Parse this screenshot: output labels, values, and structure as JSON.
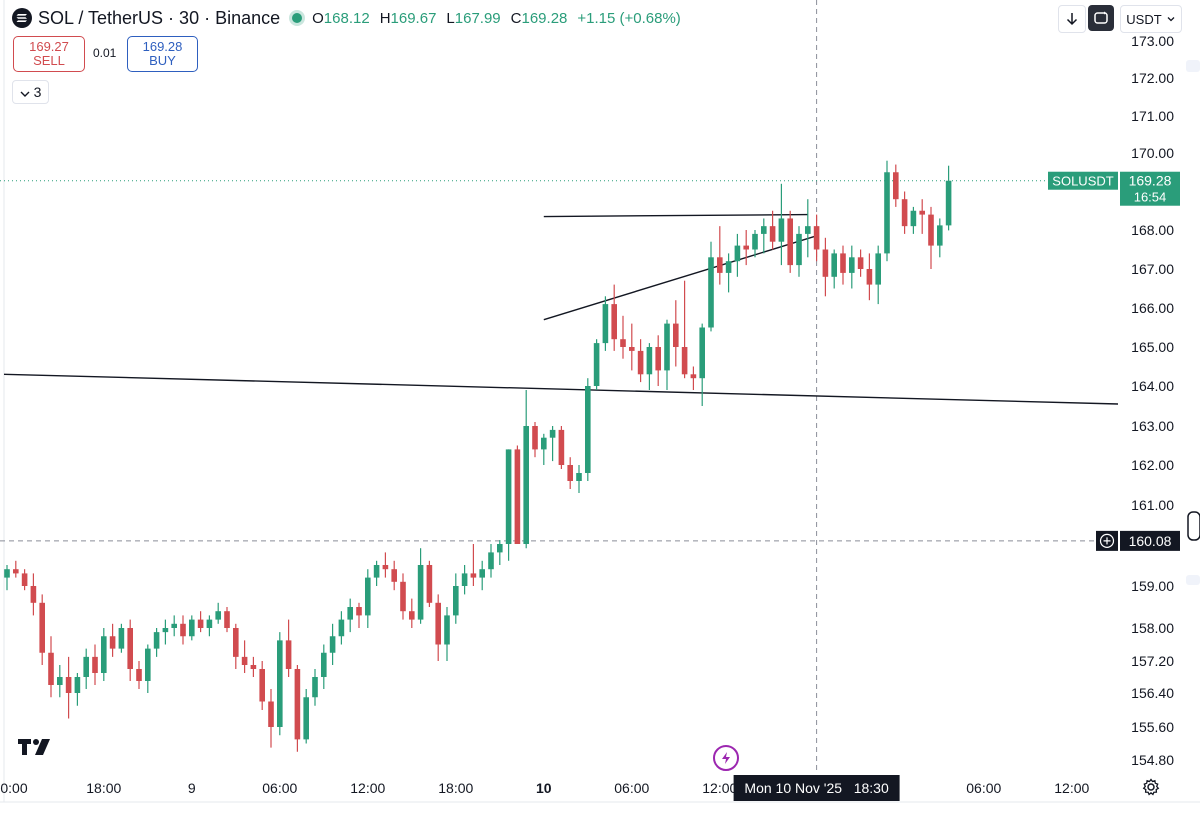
{
  "header": {
    "symbol": "SOL / TetherUS · 30 · Binance",
    "open_label": "O",
    "open_value": "168.12",
    "high_label": "H",
    "high_value": "169.67",
    "low_label": "L",
    "low_value": "167.99",
    "close_label": "C",
    "close_value": "169.28",
    "change": "+1.15 (+0.68%)"
  },
  "trade": {
    "sell_price": "169.27",
    "sell_label": "SELL",
    "spread": "0.01",
    "buy_price": "169.28",
    "buy_label": "BUY"
  },
  "indicator_count": "3",
  "toolbar": {
    "currency": "USDT"
  },
  "colors": {
    "up": "#2a9d7a",
    "down": "#d14b4f",
    "price_tag": "#2a9d7a",
    "crosshair_tag": "#131722"
  },
  "chart_data": {
    "type": "candlestick",
    "title": "SOL / TetherUS · 30 · Binance",
    "y_ticks": [
      173.0,
      172.0,
      171.0,
      170.0,
      168.0,
      167.0,
      166.0,
      165.0,
      164.0,
      163.0,
      162.0,
      161.0,
      159.0,
      158.0,
      157.2,
      156.4,
      155.6,
      154.8
    ],
    "x_ticks": [
      "0:00",
      "18:00",
      "9",
      "06:00",
      "12:00",
      "18:00",
      "10",
      "06:00",
      "12:00",
      "06:00",
      "12:00"
    ],
    "x_tick_indices": [
      0,
      11,
      21,
      31,
      41,
      51,
      61,
      71,
      81,
      111,
      121
    ],
    "bold_x_ticks": [
      "10"
    ],
    "price_label": {
      "symbol": "SOLUSDT",
      "price": "169.28",
      "countdown": "16:54"
    },
    "crosshair": {
      "price": "160.08",
      "time": "Mon 10 Nov '25   18:30",
      "index": 92
    },
    "trendlines": [
      {
        "from": [
          0,
          164.3
        ],
        "to": [
          127,
          163.55
        ]
      },
      {
        "from": [
          61,
          168.35
        ],
        "to": [
          91,
          168.4
        ]
      },
      {
        "from": [
          61,
          165.7
        ],
        "to": [
          92,
          167.85
        ]
      }
    ],
    "ohlc": [
      [
        159.2,
        159.5,
        158.9,
        159.4
      ],
      [
        159.4,
        159.6,
        159.2,
        159.3
      ],
      [
        159.3,
        159.4,
        158.9,
        159.0
      ],
      [
        159.0,
        159.3,
        158.3,
        158.6
      ],
      [
        158.6,
        158.8,
        157.1,
        157.4
      ],
      [
        157.4,
        157.8,
        156.3,
        156.6
      ],
      [
        156.6,
        157.1,
        156.3,
        156.8
      ],
      [
        156.8,
        157.3,
        155.8,
        156.4
      ],
      [
        156.4,
        156.9,
        156.1,
        156.8
      ],
      [
        156.8,
        157.5,
        156.5,
        157.3
      ],
      [
        157.3,
        157.6,
        156.6,
        156.9
      ],
      [
        156.9,
        158.0,
        156.7,
        157.8
      ],
      [
        157.8,
        158.1,
        157.3,
        157.5
      ],
      [
        157.5,
        158.1,
        157.4,
        158.0
      ],
      [
        158.0,
        158.2,
        156.7,
        157.0
      ],
      [
        157.0,
        157.2,
        156.5,
        156.7
      ],
      [
        156.7,
        157.6,
        156.4,
        157.5
      ],
      [
        157.5,
        158.0,
        157.3,
        157.9
      ],
      [
        157.9,
        158.2,
        157.6,
        158.0
      ],
      [
        158.0,
        158.3,
        157.8,
        158.1
      ],
      [
        158.1,
        158.3,
        157.6,
        157.8
      ],
      [
        157.8,
        158.3,
        157.7,
        158.2
      ],
      [
        158.2,
        158.4,
        157.9,
        158.0
      ],
      [
        158.0,
        158.3,
        157.8,
        158.2
      ],
      [
        158.2,
        158.6,
        158.1,
        158.4
      ],
      [
        158.4,
        158.5,
        157.9,
        158.0
      ],
      [
        158.0,
        158.1,
        157.0,
        157.3
      ],
      [
        157.3,
        157.7,
        156.9,
        157.1
      ],
      [
        157.1,
        157.3,
        156.8,
        157.0
      ],
      [
        157.0,
        157.2,
        156.0,
        156.2
      ],
      [
        156.2,
        156.5,
        155.1,
        155.6
      ],
      [
        155.6,
        157.9,
        155.4,
        157.7
      ],
      [
        157.7,
        158.2,
        156.8,
        157.0
      ],
      [
        157.0,
        157.1,
        155.0,
        155.3
      ],
      [
        155.3,
        156.5,
        155.2,
        156.3
      ],
      [
        156.3,
        157.0,
        156.1,
        156.8
      ],
      [
        156.8,
        157.6,
        156.5,
        157.4
      ],
      [
        157.4,
        158.1,
        157.1,
        157.8
      ],
      [
        157.8,
        158.4,
        157.6,
        158.2
      ],
      [
        158.2,
        158.7,
        157.9,
        158.5
      ],
      [
        158.5,
        158.6,
        158.0,
        158.3
      ],
      [
        158.3,
        159.4,
        158.0,
        159.2
      ],
      [
        159.2,
        159.6,
        159.0,
        159.5
      ],
      [
        159.5,
        159.8,
        159.2,
        159.4
      ],
      [
        159.4,
        159.6,
        158.9,
        159.1
      ],
      [
        159.1,
        159.3,
        158.2,
        158.4
      ],
      [
        158.4,
        158.7,
        158.0,
        158.2
      ],
      [
        158.2,
        159.9,
        158.1,
        159.5
      ],
      [
        159.5,
        159.6,
        158.5,
        158.6
      ],
      [
        158.6,
        158.8,
        157.2,
        157.6
      ],
      [
        157.6,
        158.5,
        157.2,
        158.3
      ],
      [
        158.3,
        159.3,
        158.1,
        159.0
      ],
      [
        159.0,
        159.5,
        158.8,
        159.3
      ],
      [
        159.3,
        160.0,
        159.0,
        159.2
      ],
      [
        159.2,
        159.6,
        158.9,
        159.4
      ],
      [
        159.4,
        160.0,
        159.2,
        159.8
      ],
      [
        159.8,
        160.1,
        159.5,
        160.0
      ],
      [
        160.0,
        162.4,
        159.6,
        162.4
      ],
      [
        162.4,
        162.5,
        160.0,
        160.0
      ],
      [
        160.0,
        163.9,
        159.9,
        163.0
      ],
      [
        163.0,
        163.1,
        162.2,
        162.4
      ],
      [
        162.4,
        162.8,
        162.0,
        162.7
      ],
      [
        162.7,
        163.0,
        162.1,
        162.9
      ],
      [
        162.9,
        163.0,
        161.9,
        162.0
      ],
      [
        162.0,
        162.2,
        161.4,
        161.6
      ],
      [
        161.6,
        162.0,
        161.3,
        161.8
      ],
      [
        161.8,
        164.2,
        161.6,
        164.0
      ],
      [
        164.0,
        165.2,
        163.9,
        165.1
      ],
      [
        165.1,
        166.3,
        164.9,
        166.1
      ],
      [
        166.1,
        166.6,
        164.9,
        165.2
      ],
      [
        165.2,
        165.8,
        164.7,
        165.0
      ],
      [
        165.0,
        165.6,
        164.4,
        164.9
      ],
      [
        164.9,
        165.2,
        164.1,
        164.3
      ],
      [
        164.3,
        165.1,
        163.9,
        165.0
      ],
      [
        165.0,
        165.3,
        164.0,
        164.4
      ],
      [
        164.4,
        165.7,
        163.9,
        165.6
      ],
      [
        165.6,
        166.2,
        164.5,
        165.0
      ],
      [
        165.0,
        166.7,
        164.2,
        164.3
      ],
      [
        164.3,
        164.5,
        163.9,
        164.2
      ],
      [
        164.2,
        165.6,
        163.5,
        165.5
      ],
      [
        165.5,
        167.7,
        165.4,
        167.3
      ],
      [
        167.3,
        168.1,
        166.6,
        166.9
      ],
      [
        166.9,
        167.4,
        166.4,
        167.2
      ],
      [
        167.2,
        167.9,
        166.8,
        167.6
      ],
      [
        167.6,
        168.0,
        167.1,
        167.5
      ],
      [
        167.5,
        168.0,
        167.3,
        167.9
      ],
      [
        167.9,
        168.3,
        167.4,
        168.1
      ],
      [
        168.1,
        168.5,
        167.5,
        167.7
      ],
      [
        167.7,
        169.2,
        167.1,
        168.3
      ],
      [
        168.3,
        168.5,
        166.9,
        167.1
      ],
      [
        167.1,
        168.1,
        166.8,
        167.9
      ],
      [
        167.9,
        168.8,
        167.3,
        168.1
      ],
      [
        168.1,
        168.4,
        167.2,
        167.5
      ],
      [
        167.5,
        167.8,
        166.3,
        166.8
      ],
      [
        166.8,
        167.5,
        166.5,
        167.4
      ],
      [
        167.4,
        167.6,
        166.6,
        166.9
      ],
      [
        166.9,
        167.6,
        166.5,
        167.3
      ],
      [
        167.3,
        167.5,
        166.8,
        167.0
      ],
      [
        167.0,
        167.4,
        166.2,
        166.6
      ],
      [
        166.6,
        167.6,
        166.1,
        167.4
      ],
      [
        167.4,
        169.8,
        167.2,
        169.5
      ],
      [
        169.5,
        169.7,
        168.6,
        168.8
      ],
      [
        168.8,
        169.0,
        167.9,
        168.1
      ],
      [
        168.1,
        168.6,
        167.9,
        168.5
      ],
      [
        168.5,
        168.8,
        167.9,
        168.4
      ],
      [
        168.4,
        168.6,
        167.0,
        167.6
      ],
      [
        167.6,
        168.3,
        167.3,
        168.12
      ],
      [
        168.12,
        169.67,
        167.99,
        169.28
      ]
    ]
  }
}
